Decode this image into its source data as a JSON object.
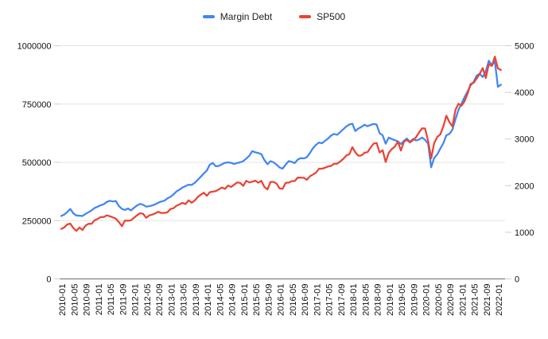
{
  "legend": {
    "position": "top",
    "items": [
      {
        "label": "Margin Debt",
        "color": "#4285f4"
      },
      {
        "label": "SP500",
        "color": "#ea4335"
      }
    ]
  },
  "chart_data": {
    "type": "line",
    "title": "",
    "background": "#ffffff",
    "grid": "horizontal",
    "x_interval": "monthly",
    "x_start_month": "2010-01",
    "x_end_month": "2022-02",
    "x_tick_labels": [
      "2010-01",
      "2010-05",
      "2010-09",
      "2011-01",
      "2011-05",
      "2011-09",
      "2012-01",
      "2012-05",
      "2012-09",
      "2013-01",
      "2013-05",
      "2013-09",
      "2014-01",
      "2014-05",
      "2014-09",
      "2015-01",
      "2015-05",
      "2015-09",
      "2016-01",
      "2016-05",
      "2016-09",
      "2017-01",
      "2017-05",
      "2017-09",
      "2018-01",
      "2018-05",
      "2018-09",
      "2019-01",
      "2019-05",
      "2019-09",
      "2020-01",
      "2020-05",
      "2020-09",
      "2021-01",
      "2021-05",
      "2021-09",
      "2022-01"
    ],
    "left_axis": {
      "series": "Margin Debt",
      "range": [
        0,
        1000000
      ],
      "ticks": [
        0,
        250000,
        500000,
        750000,
        1000000
      ]
    },
    "right_axis": {
      "series": "SP500",
      "range": [
        0,
        5000
      ],
      "ticks": [
        0,
        1000,
        2000,
        3000,
        4000,
        5000
      ]
    },
    "series": [
      {
        "name": "Margin Debt",
        "axis": "left",
        "color": "#4285f4",
        "values": [
          270000,
          276000,
          287000,
          300000,
          281000,
          272000,
          271000,
          270000,
          279000,
          286000,
          294000,
          304000,
          310000,
          316000,
          320000,
          330000,
          335000,
          332000,
          334000,
          313000,
          300000,
          296000,
          302000,
          294000,
          305000,
          315000,
          322000,
          318000,
          310000,
          312000,
          315000,
          320000,
          327000,
          332000,
          335000,
          345000,
          352000,
          362000,
          375000,
          383000,
          392000,
          398000,
          404000,
          403000,
          412000,
          425000,
          438000,
          452000,
          465000,
          490000,
          497000,
          483000,
          485000,
          492000,
          498000,
          500000,
          498000,
          493000,
          497000,
          500000,
          505000,
          516000,
          528000,
          548000,
          543000,
          540000,
          535000,
          510000,
          492000,
          505000,
          500000,
          490000,
          478000,
          473000,
          490000,
          505000,
          502000,
          497000,
          512000,
          518000,
          517000,
          522000,
          540000,
          560000,
          575000,
          585000,
          582000,
          592000,
          602000,
          615000,
          622000,
          618000,
          630000,
          642000,
          654000,
          662000,
          666000,
          634000,
          645000,
          652000,
          661000,
          655000,
          660000,
          665000,
          662000,
          625000,
          616000,
          580000,
          606000,
          600000,
          595000,
          590000,
          578000,
          592000,
          602000,
          588000,
          600000,
          594000,
          598000,
          606000,
          596000,
          580000,
          479000,
          519000,
          534000,
          559000,
          582000,
          616000,
          622000,
          640000,
          684000,
          725000,
          752000,
          780000,
          804000,
          830000,
          845000,
          872000,
          880000,
          866000,
          890000,
          936000,
          916000,
          933000,
          824000,
          833000
        ]
      },
      {
        "name": "SP500",
        "axis": "right",
        "color": "#ea4335",
        "values": [
          1073.87,
          1104.49,
          1169.43,
          1186.69,
          1089.41,
          1030.71,
          1101.6,
          1049.33,
          1141.2,
          1183.26,
          1180.55,
          1257.64,
          1286.12,
          1327.22,
          1325.83,
          1363.61,
          1345.2,
          1320.64,
          1292.28,
          1218.89,
          1131.42,
          1253.3,
          1246.96,
          1257.6,
          1312.41,
          1365.68,
          1408.47,
          1397.91,
          1310.33,
          1362.16,
          1379.32,
          1406.58,
          1440.67,
          1412.16,
          1416.18,
          1426.19,
          1498.11,
          1514.68,
          1569.19,
          1597.57,
          1630.74,
          1606.28,
          1685.73,
          1632.97,
          1681.55,
          1756.54,
          1805.81,
          1848.36,
          1782.59,
          1859.45,
          1872.34,
          1883.95,
          1923.57,
          1960.23,
          1930.67,
          2003.37,
          1972.29,
          2018.05,
          2067.56,
          2058.9,
          1994.99,
          2104.5,
          2067.89,
          2085.51,
          2107.39,
          2063.11,
          2103.84,
          1972.18,
          1920.03,
          2079.36,
          2080.41,
          2043.94,
          1940.24,
          1932.23,
          2059.74,
          2065.3,
          2096.96,
          2098.86,
          2173.6,
          2170.95,
          2168.27,
          2126.15,
          2198.81,
          2238.83,
          2278.87,
          2363.64,
          2362.72,
          2384.2,
          2411.8,
          2423.41,
          2470.3,
          2471.65,
          2519.36,
          2575.26,
          2647.58,
          2673.61,
          2823.81,
          2713.83,
          2640.87,
          2648.05,
          2705.27,
          2718.37,
          2816.29,
          2901.52,
          2913.98,
          2711.74,
          2760.17,
          2506.85,
          2704.1,
          2784.49,
          2834.4,
          2945.83,
          2752.06,
          2941.76,
          2980.38,
          2926.46,
          2976.74,
          3037.56,
          3140.98,
          3230.78,
          3225.52,
          2954.22,
          2584.59,
          2912.43,
          3044.31,
          3100.29,
          3271.12,
          3500.31,
          3363.0,
          3269.96,
          3621.63,
          3756.07,
          3714.24,
          3811.15,
          3972.89,
          4181.17,
          4204.11,
          4297.5,
          4395.26,
          4522.68,
          4307.54,
          4605.38,
          4567.0,
          4766.18,
          4515.55,
          4480.0
        ]
      }
    ]
  }
}
